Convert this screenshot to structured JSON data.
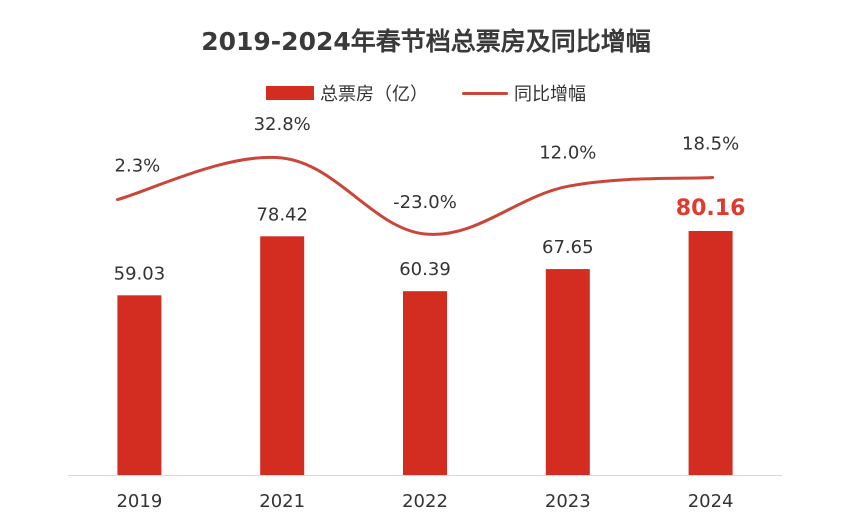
{
  "chart_data": {
    "type": "bar",
    "title": "2019-2024年春节档总票房及同比增幅",
    "categories": [
      "2019",
      "2021",
      "2022",
      "2023",
      "2024"
    ],
    "series": [
      {
        "name": "总票房（亿）",
        "type": "bar",
        "values": [
          59.03,
          78.42,
          60.39,
          67.65,
          80.16
        ],
        "labels": [
          "59.03",
          "78.42",
          "60.39",
          "67.65",
          "80.16"
        ],
        "color": "#d22d20"
      },
      {
        "name": "同比增幅",
        "type": "line",
        "values": [
          2.3,
          32.8,
          -23.0,
          12.0,
          18.5
        ],
        "labels": [
          "2.3%",
          "32.8%",
          "-23.0%",
          "12.0%",
          "18.5%"
        ],
        "color": "#c9473a"
      }
    ],
    "highlight_index": 4,
    "highlight_color": "#e03a2e",
    "grid": false,
    "legend_position": "top"
  }
}
